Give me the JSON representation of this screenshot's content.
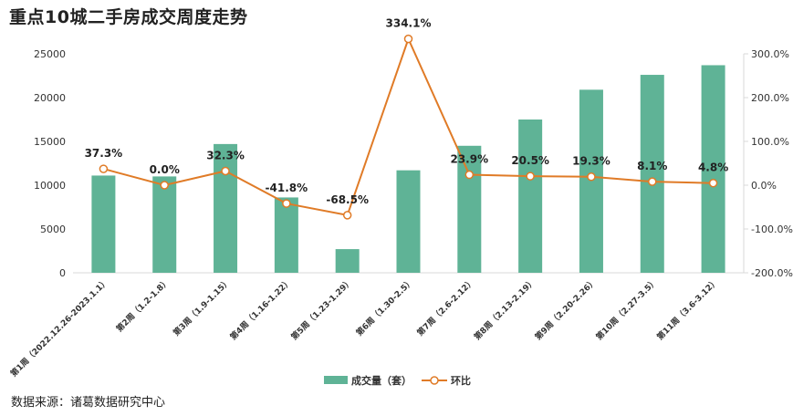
{
  "title": "重点10城二手房成交周度走势",
  "source": "数据来源：诸葛数据研究中心",
  "colors": {
    "bar": "#5fb396",
    "line": "#e07b27",
    "grid": "#d9d9d9"
  },
  "chart_data": {
    "type": "bar+line",
    "title": "重点10城二手房成交周度走势",
    "categories": [
      "第1周（2022.12.26-2023.1.1）",
      "第2周（1.2-1.8）",
      "第3周（1.9-1.15）",
      "第4周（1.16-1.22）",
      "第5周（1.23-1.29）",
      "第6周（1.30-2.5）",
      "第7周（2.6-2.12）",
      "第8周（2.13-2.19）",
      "第9周（2.20-2.26）",
      "第10周（2.27-3.5）",
      "第11周（3.6-3.12）"
    ],
    "series": [
      {
        "name": "成交量（套）",
        "axis": "left",
        "type": "bar",
        "values": [
          11100,
          11000,
          14700,
          8600,
          2700,
          11700,
          14500,
          17500,
          20900,
          22600,
          23700
        ]
      },
      {
        "name": "环比",
        "axis": "right",
        "type": "line",
        "values": [
          37.3,
          0.0,
          32.3,
          -41.8,
          -68.5,
          334.1,
          23.9,
          20.5,
          19.3,
          8.1,
          4.8
        ],
        "labels": [
          "37.3%",
          "0.0%",
          "32.3%",
          "-41.8%",
          "-68.5%",
          "334.1%",
          "23.9%",
          "20.5%",
          "19.3%",
          "8.1%",
          "4.8%"
        ]
      }
    ],
    "y_left": {
      "min": 0,
      "max": 25000,
      "ticks": [
        "0",
        "5000",
        "10000",
        "15000",
        "20000",
        "25000"
      ]
    },
    "y_right": {
      "min": -200,
      "max": 300,
      "ticks": [
        "-200.0%",
        "-100.0%",
        "0.0%",
        "100.0%",
        "200.0%",
        "300.0%"
      ]
    },
    "legend": {
      "position": "bottom-center",
      "items": [
        "成交量（套）",
        "环比"
      ]
    },
    "grid": false
  }
}
